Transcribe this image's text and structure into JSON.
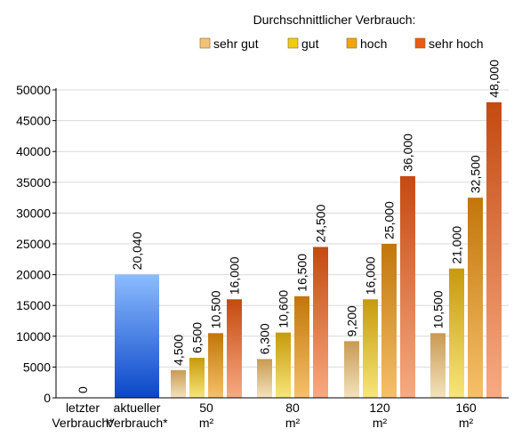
{
  "chart_data": {
    "type": "bar",
    "legend": {
      "title": "Durchschnittlicher Verbrauch:",
      "placement": "top-right",
      "entries": [
        {
          "name": "sehr gut",
          "color": "#f2c27a"
        },
        {
          "name": "gut",
          "color": "#f0cc10"
        },
        {
          "name": "hoch",
          "color": "#f4a20e"
        },
        {
          "name": "sehr hoch",
          "color": "#ec5a16"
        }
      ]
    },
    "yaxis": {
      "ylim": [
        0,
        50000
      ],
      "ticks": [
        0,
        5000,
        10000,
        15000,
        20000,
        25000,
        30000,
        35000,
        40000,
        45000,
        50000
      ],
      "tick_labels": [
        "0",
        "5000",
        "10000",
        "15000",
        "20000",
        "25000",
        "30000",
        "35000",
        "40000",
        "45000",
        "50000"
      ],
      "grid": true
    },
    "single_bars": [
      {
        "category": [
          "letzter",
          "Verbrauch*"
        ],
        "value": 0,
        "label": "0",
        "color": "#4a8ef0"
      },
      {
        "category": [
          "aktueller",
          "Verbrauch*"
        ],
        "value": 20040,
        "label": "20,040",
        "color": "#4a8ef0"
      }
    ],
    "groups": [
      {
        "category": [
          "50",
          "m²"
        ],
        "values": [
          4500,
          6500,
          10500,
          16000
        ],
        "labels": [
          "4,500",
          "6,500",
          "10,500",
          "16,000"
        ]
      },
      {
        "category": [
          "80",
          "m²"
        ],
        "values": [
          6300,
          10600,
          16500,
          24500
        ],
        "labels": [
          "6,300",
          "10,600",
          "16,500",
          "24,500"
        ]
      },
      {
        "category": [
          "120",
          "m²"
        ],
        "values": [
          9200,
          16000,
          25000,
          36000
        ],
        "labels": [
          "9,200",
          "16,000",
          "25,000",
          "36,000"
        ]
      },
      {
        "category": [
          "160",
          "m²"
        ],
        "values": [
          10500,
          21000,
          32500,
          48000
        ],
        "labels": [
          "10,500",
          "21,000",
          "32,500",
          "48,000"
        ]
      }
    ]
  }
}
